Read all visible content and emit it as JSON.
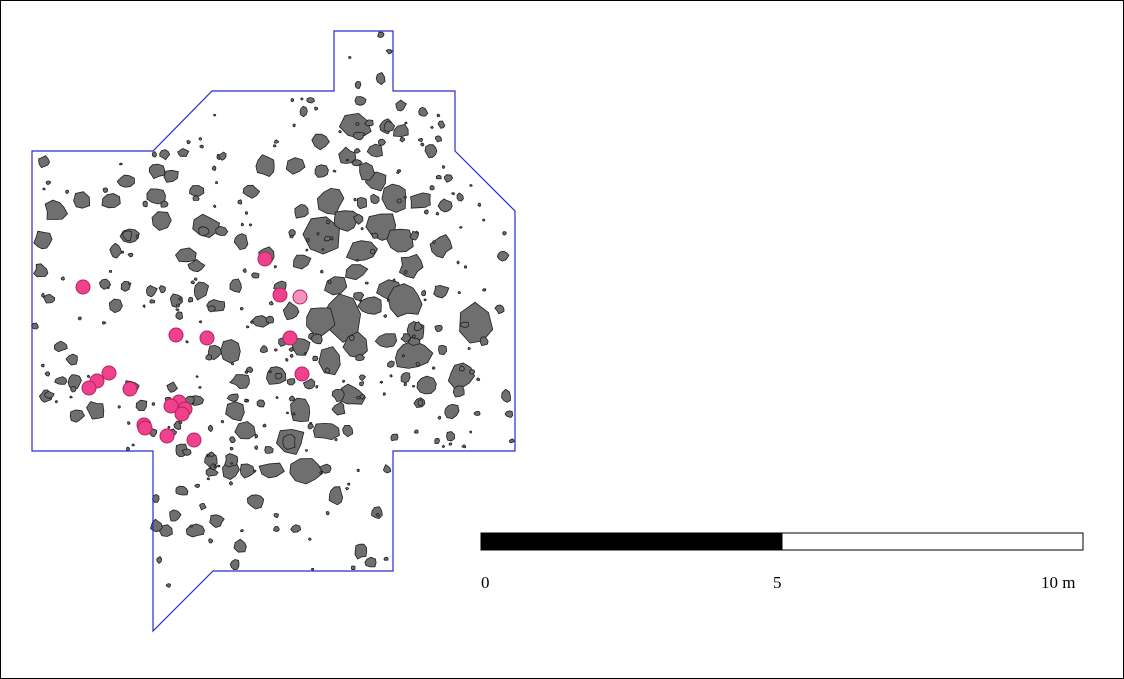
{
  "map": {
    "colors": {
      "boundary": "#2a2ad0",
      "stone_fill": "#6f6f6f",
      "stone_stroke": "#1e1e1e",
      "find_fill": "#f0428c",
      "find_fill_light": "#f492bf",
      "find_stroke": "#b8205f",
      "scale_dark": "#000000",
      "scale_light": "#ffffff"
    },
    "symbols": {
      "stone": "stone-polygon",
      "find": "find-marker-circle"
    }
  },
  "scale_bar": {
    "labels": [
      "0",
      "5",
      "10 m"
    ],
    "segments": [
      {
        "from": 0,
        "to": 5,
        "fill": "dark"
      },
      {
        "from": 5,
        "to": 10,
        "fill": "light"
      }
    ]
  }
}
